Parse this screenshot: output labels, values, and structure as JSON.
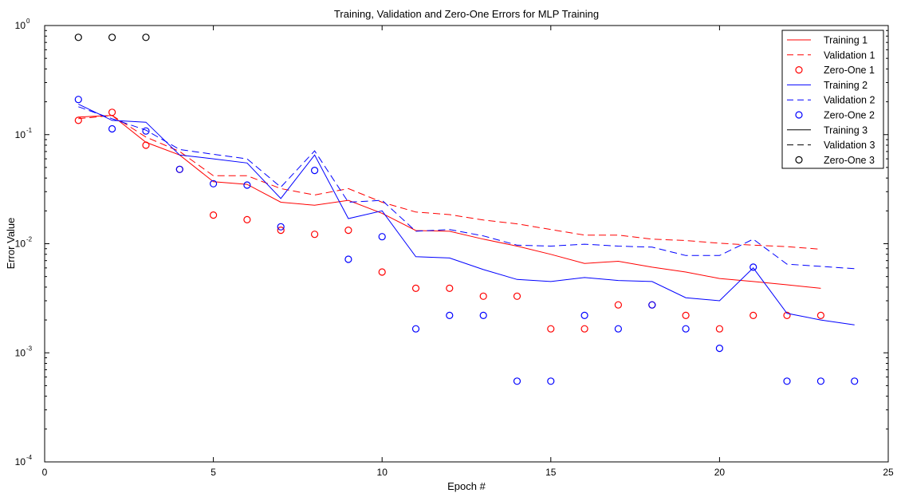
{
  "chart_data": {
    "type": "line",
    "title": "Training, Validation and Zero-One Errors for MLP Training",
    "xlabel": "Epoch #",
    "ylabel": "Error Value",
    "xlim": [
      0,
      25
    ],
    "ylim": [
      0.0001,
      1
    ],
    "yscale": "log",
    "xticks": [
      "0",
      "5",
      "10",
      "15",
      "20",
      "25"
    ],
    "yticks": [
      {
        "base": "10",
        "exp": "-4"
      },
      {
        "base": "10",
        "exp": "-3"
      },
      {
        "base": "10",
        "exp": "-2"
      },
      {
        "base": "10",
        "exp": "-1"
      },
      {
        "base": "10",
        "exp": "0"
      }
    ],
    "grid": false,
    "legend_position": "top-right",
    "series": [
      {
        "name": "Training 1",
        "color": "#ff0000",
        "style": "solid",
        "marker": "none",
        "x": [
          1,
          2,
          3,
          4,
          5,
          6,
          7,
          8,
          9,
          10,
          11,
          12,
          13,
          14,
          15,
          16,
          17,
          18,
          19,
          20,
          21,
          22,
          23
        ],
        "y": [
          0.145,
          0.15,
          0.085,
          0.065,
          0.037,
          0.035,
          0.024,
          0.0225,
          0.025,
          0.019,
          0.0132,
          0.013,
          0.011,
          0.0095,
          0.008,
          0.0066,
          0.0069,
          0.0061,
          0.0055,
          0.0048,
          0.0045,
          0.0042,
          0.0039
        ]
      },
      {
        "name": "Validation 1",
        "color": "#ff0000",
        "style": "dashed",
        "marker": "none",
        "x": [
          1,
          2,
          3,
          4,
          5,
          6,
          7,
          8,
          9,
          10,
          11,
          12,
          13,
          14,
          15,
          16,
          17,
          18,
          19,
          20,
          21,
          22,
          23
        ],
        "y": [
          0.14,
          0.15,
          0.095,
          0.07,
          0.042,
          0.042,
          0.032,
          0.028,
          0.032,
          0.024,
          0.0195,
          0.0185,
          0.0165,
          0.0152,
          0.0135,
          0.012,
          0.012,
          0.011,
          0.0107,
          0.0101,
          0.0097,
          0.0094,
          0.0089
        ]
      },
      {
        "name": "Zero-One 1",
        "color": "#ff0000",
        "style": "none",
        "marker": "o",
        "x": [
          1,
          2,
          3,
          4,
          5,
          6,
          7,
          8,
          9,
          10,
          11,
          12,
          13,
          14,
          15,
          16,
          17,
          18,
          19,
          20,
          21,
          22,
          23
        ],
        "y": [
          0.135,
          0.16,
          0.08,
          0.048,
          0.0183,
          0.0166,
          0.0133,
          0.0122,
          0.0133,
          0.0055,
          0.0039,
          0.0039,
          0.0033,
          0.0033,
          0.00166,
          0.00166,
          0.00275,
          0.00275,
          0.0022,
          0.00166,
          0.0022,
          0.0022,
          0.0022
        ]
      },
      {
        "name": "Training 2",
        "color": "#0000ff",
        "style": "solid",
        "marker": "none",
        "x": [
          1,
          2,
          3,
          4,
          5,
          6,
          7,
          8,
          9,
          10,
          11,
          12,
          13,
          14,
          15,
          16,
          17,
          18,
          19,
          20,
          21,
          22,
          23,
          24
        ],
        "y": [
          0.19,
          0.135,
          0.13,
          0.065,
          0.06,
          0.055,
          0.026,
          0.065,
          0.017,
          0.02,
          0.0076,
          0.0074,
          0.0058,
          0.0047,
          0.0045,
          0.0049,
          0.0046,
          0.0045,
          0.0032,
          0.003,
          0.006,
          0.0023,
          0.002,
          0.0018
        ]
      },
      {
        "name": "Validation 2",
        "color": "#0000ff",
        "style": "dashed",
        "marker": "none",
        "x": [
          1,
          2,
          3,
          4,
          5,
          6,
          7,
          8,
          9,
          10,
          11,
          12,
          13,
          14,
          15,
          16,
          17,
          18,
          19,
          20,
          21,
          22,
          23,
          24
        ],
        "y": [
          0.18,
          0.14,
          0.11,
          0.073,
          0.066,
          0.06,
          0.033,
          0.071,
          0.024,
          0.025,
          0.013,
          0.0135,
          0.0118,
          0.0097,
          0.0095,
          0.0099,
          0.0095,
          0.0093,
          0.0078,
          0.0078,
          0.011,
          0.0065,
          0.0062,
          0.0059
        ]
      },
      {
        "name": "Zero-One 2",
        "color": "#0000ff",
        "style": "none",
        "marker": "o",
        "x": [
          1,
          2,
          3,
          4,
          5,
          6,
          7,
          8,
          9,
          10,
          11,
          12,
          13,
          14,
          15,
          16,
          17,
          18,
          19,
          20,
          21,
          22,
          23,
          24
        ],
        "y": [
          0.21,
          0.113,
          0.108,
          0.048,
          0.0355,
          0.0345,
          0.0143,
          0.047,
          0.0072,
          0.0116,
          0.00166,
          0.0022,
          0.0022,
          0.00055,
          0.00055,
          0.0022,
          0.00166,
          0.00275,
          0.00166,
          0.0011,
          0.0061,
          0.00055,
          0.00055,
          0.00055
        ]
      },
      {
        "name": "Training 3",
        "color": "#000000",
        "style": "solid",
        "marker": "none",
        "x": [],
        "y": []
      },
      {
        "name": "Validation 3",
        "color": "#000000",
        "style": "dashed",
        "marker": "none",
        "x": [],
        "y": []
      },
      {
        "name": "Zero-One 3",
        "color": "#000000",
        "style": "none",
        "marker": "o",
        "x": [
          1,
          2,
          3
        ],
        "y": [
          0.78,
          0.78,
          0.78
        ]
      }
    ]
  }
}
